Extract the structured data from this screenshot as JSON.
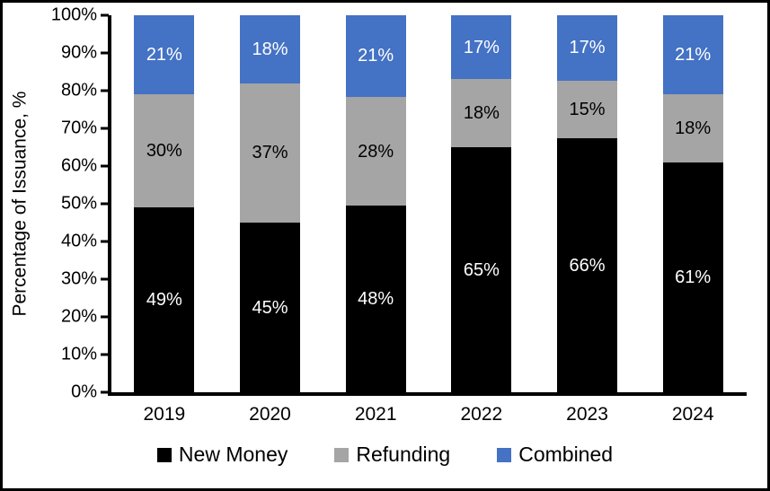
{
  "chart_data": {
    "type": "bar",
    "stacked": true,
    "title": "",
    "xlabel": "",
    "ylabel": "Percentage of Issuance, %",
    "ylim": [
      0,
      100
    ],
    "grid": false,
    "legend_position": "bottom",
    "value_suffix": "%",
    "categories": [
      "2019",
      "2020",
      "2021",
      "2022",
      "2023",
      "2024"
    ],
    "y_ticks": [
      "0%",
      "10%",
      "20%",
      "30%",
      "40%",
      "50%",
      "60%",
      "70%",
      "80%",
      "90%",
      "100%"
    ],
    "series": [
      {
        "name": "New Money",
        "color": "#000000",
        "label_color": "#ffffff",
        "values": [
          49,
          45,
          48,
          65,
          66,
          61
        ]
      },
      {
        "name": "Refunding",
        "color": "#A5A5A5",
        "label_color": "#000000",
        "values": [
          30,
          37,
          28,
          18,
          15,
          18
        ]
      },
      {
        "name": "Combined",
        "color": "#4472C4",
        "label_color": "#ffffff",
        "values": [
          21,
          18,
          21,
          17,
          17,
          21
        ]
      }
    ],
    "colors": {
      "axis": "#000000",
      "background": "#ffffff",
      "border": "#000000"
    }
  }
}
